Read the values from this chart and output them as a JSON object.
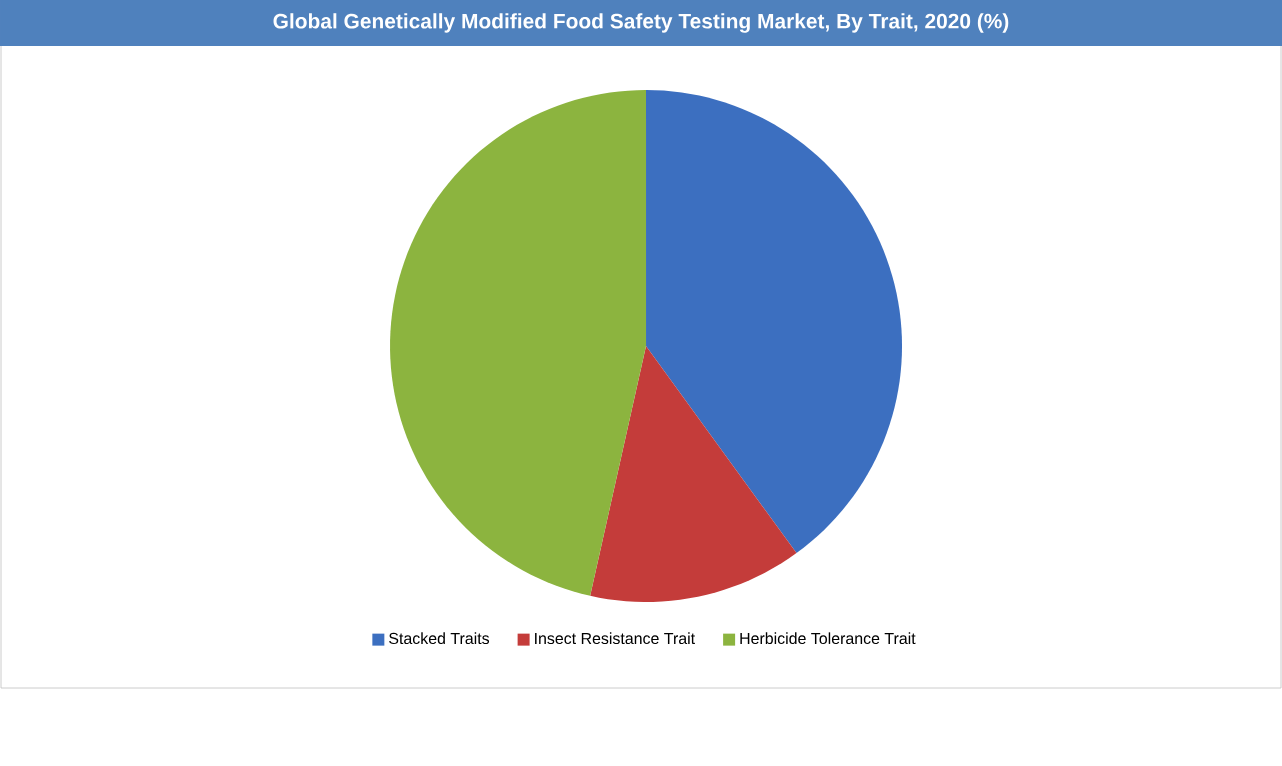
{
  "chart_data": {
    "type": "pie",
    "title": "Global Genetically Modified Food Safety Testing Market, By Trait, 2020 (%)",
    "categories": [
      "Stacked Traits",
      "Insect Resistance Trait",
      "Herbicide Tolerance Trait"
    ],
    "values": [
      40,
      13.5,
      46.5
    ],
    "colors": [
      "#3c6fc0",
      "#c43c3a",
      "#8cb43f"
    ],
    "legend": "bottom"
  }
}
